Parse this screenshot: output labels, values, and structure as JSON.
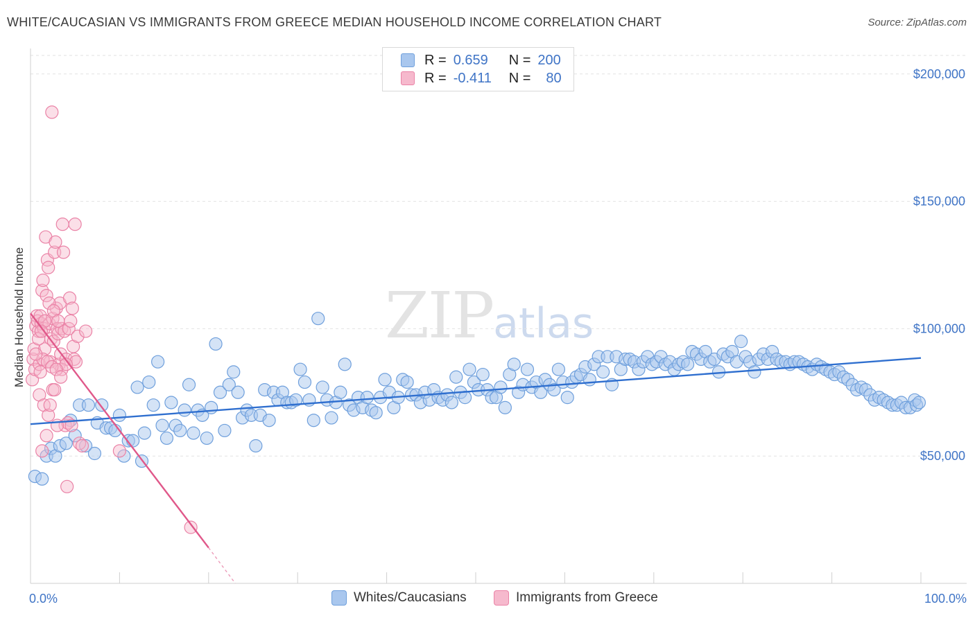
{
  "title": "WHITE/CAUCASIAN VS IMMIGRANTS FROM GREECE MEDIAN HOUSEHOLD INCOME CORRELATION CHART",
  "source": "Source: ZipAtlas.com",
  "watermark": {
    "zip": "ZIP",
    "atlas": "atlas"
  },
  "legend_top": {
    "rows": [
      {
        "r_label": "R =",
        "r_value": "0.659",
        "n_label": "N =",
        "n_value": "200"
      },
      {
        "r_label": "R =",
        "r_value": "-0.411",
        "n_label": "N =",
        "n_value": "80"
      }
    ]
  },
  "legend_bottom": {
    "items": [
      {
        "label": "Whites/Caucasians"
      },
      {
        "label": "Immigrants from Greece"
      }
    ]
  },
  "colors": {
    "blue_fill": "#a9c7ee",
    "blue_stroke": "#6e9fdc",
    "blue_line": "#2f6fcf",
    "pink_fill": "#f6b9cd",
    "pink_stroke": "#ea82a6",
    "pink_line": "#e0588a",
    "grid": "#e2e2e2",
    "tick_text": "#3f74c6"
  },
  "chart_data": {
    "type": "scatter",
    "title": "WHITE/CAUCASIAN VS IMMIGRANTS FROM GREECE MEDIAN HOUSEHOLD INCOME CORRELATION CHART",
    "xlabel": "",
    "ylabel": "Median Household Income",
    "xlim": [
      0,
      100
    ],
    "ylim": [
      0,
      210000
    ],
    "x_tick_labels": [
      "0.0%",
      "100.0%"
    ],
    "y_ticks": [
      50000,
      100000,
      150000,
      200000
    ],
    "y_tick_labels": [
      "$50,000",
      "$100,000",
      "$150,000",
      "$200,000"
    ],
    "grid": "horizontal dashed",
    "legend": "top-center",
    "series": [
      {
        "name": "Whites/Caucasians",
        "r": 0.659,
        "n": 200,
        "trend": {
          "x": [
            0,
            100
          ],
          "y": [
            62500,
            88500
          ]
        },
        "points": [
          [
            0.5,
            42000
          ],
          [
            1.3,
            41000
          ],
          [
            1.8,
            50000
          ],
          [
            2.3,
            53000
          ],
          [
            2.8,
            50000
          ],
          [
            3.3,
            54000
          ],
          [
            4.0,
            55000
          ],
          [
            4.5,
            64000
          ],
          [
            5.0,
            58000
          ],
          [
            5.5,
            70000
          ],
          [
            6.2,
            54000
          ],
          [
            6.5,
            70000
          ],
          [
            7.2,
            51000
          ],
          [
            7.5,
            63000
          ],
          [
            8.0,
            70000
          ],
          [
            8.5,
            61000
          ],
          [
            9.0,
            61000
          ],
          [
            9.5,
            60000
          ],
          [
            10.0,
            66000
          ],
          [
            10.5,
            50000
          ],
          [
            11.0,
            56000
          ],
          [
            11.5,
            56000
          ],
          [
            12.0,
            77000
          ],
          [
            12.5,
            48000
          ],
          [
            12.8,
            59000
          ],
          [
            13.3,
            79000
          ],
          [
            13.8,
            70000
          ],
          [
            14.3,
            87000
          ],
          [
            14.8,
            62000
          ],
          [
            15.3,
            57000
          ],
          [
            15.8,
            71000
          ],
          [
            16.3,
            62000
          ],
          [
            16.8,
            60000
          ],
          [
            17.3,
            68000
          ],
          [
            17.8,
            78000
          ],
          [
            18.3,
            59000
          ],
          [
            18.8,
            68000
          ],
          [
            19.3,
            66000
          ],
          [
            19.8,
            57000
          ],
          [
            20.3,
            69000
          ],
          [
            20.8,
            94000
          ],
          [
            21.3,
            75000
          ],
          [
            21.8,
            60000
          ],
          [
            22.3,
            78000
          ],
          [
            22.8,
            83000
          ],
          [
            23.3,
            75000
          ],
          [
            23.8,
            65000
          ],
          [
            24.3,
            68000
          ],
          [
            24.8,
            66000
          ],
          [
            25.3,
            54000
          ],
          [
            25.8,
            66000
          ],
          [
            26.3,
            76000
          ],
          [
            26.8,
            64000
          ],
          [
            27.3,
            75000
          ],
          [
            27.8,
            72000
          ],
          [
            28.3,
            75000
          ],
          [
            28.8,
            71000
          ],
          [
            29.3,
            71000
          ],
          [
            29.8,
            72000
          ],
          [
            30.3,
            84000
          ],
          [
            30.8,
            79000
          ],
          [
            31.3,
            72000
          ],
          [
            31.8,
            64000
          ],
          [
            32.3,
            104000
          ],
          [
            32.8,
            77000
          ],
          [
            33.3,
            72000
          ],
          [
            33.8,
            65000
          ],
          [
            34.3,
            71000
          ],
          [
            34.8,
            75000
          ],
          [
            35.3,
            86000
          ],
          [
            35.8,
            70000
          ],
          [
            36.3,
            68000
          ],
          [
            36.8,
            73000
          ],
          [
            37.3,
            69000
          ],
          [
            37.8,
            73000
          ],
          [
            38.3,
            68000
          ],
          [
            38.8,
            67000
          ],
          [
            39.3,
            73000
          ],
          [
            39.8,
            80000
          ],
          [
            40.3,
            75000
          ],
          [
            40.8,
            69000
          ],
          [
            41.3,
            73000
          ],
          [
            41.8,
            80000
          ],
          [
            42.3,
            79000
          ],
          [
            42.8,
            74000
          ],
          [
            43.3,
            74000
          ],
          [
            43.8,
            71000
          ],
          [
            44.3,
            75000
          ],
          [
            44.8,
            72000
          ],
          [
            45.3,
            76000
          ],
          [
            45.8,
            73000
          ],
          [
            46.3,
            72000
          ],
          [
            46.8,
            74000
          ],
          [
            47.3,
            71000
          ],
          [
            47.8,
            81000
          ],
          [
            48.3,
            75000
          ],
          [
            48.8,
            73000
          ],
          [
            49.3,
            84000
          ],
          [
            49.8,
            79000
          ],
          [
            50.3,
            76000
          ],
          [
            50.8,
            82000
          ],
          [
            51.3,
            76000
          ],
          [
            51.8,
            73000
          ],
          [
            52.3,
            73000
          ],
          [
            52.8,
            77000
          ],
          [
            53.3,
            69000
          ],
          [
            53.8,
            82000
          ],
          [
            54.3,
            86000
          ],
          [
            54.8,
            75000
          ],
          [
            55.3,
            78000
          ],
          [
            55.8,
            84000
          ],
          [
            56.3,
            77000
          ],
          [
            56.8,
            79000
          ],
          [
            57.3,
            75000
          ],
          [
            57.8,
            80000
          ],
          [
            58.3,
            78000
          ],
          [
            58.8,
            76000
          ],
          [
            59.3,
            84000
          ],
          [
            59.8,
            79000
          ],
          [
            60.3,
            73000
          ],
          [
            60.8,
            79000
          ],
          [
            61.3,
            81000
          ],
          [
            61.8,
            82000
          ],
          [
            62.3,
            85000
          ],
          [
            62.8,
            80000
          ],
          [
            63.3,
            86000
          ],
          [
            63.8,
            89000
          ],
          [
            64.3,
            83000
          ],
          [
            64.8,
            89000
          ],
          [
            65.3,
            78000
          ],
          [
            65.8,
            89000
          ],
          [
            66.3,
            84000
          ],
          [
            66.8,
            88000
          ],
          [
            67.3,
            88000
          ],
          [
            67.8,
            87000
          ],
          [
            68.3,
            84000
          ],
          [
            68.8,
            87000
          ],
          [
            69.3,
            89000
          ],
          [
            69.8,
            86000
          ],
          [
            70.3,
            87000
          ],
          [
            70.8,
            89000
          ],
          [
            71.3,
            86000
          ],
          [
            71.8,
            87000
          ],
          [
            72.3,
            84000
          ],
          [
            72.8,
            86000
          ],
          [
            73.3,
            87000
          ],
          [
            73.8,
            86000
          ],
          [
            74.3,
            91000
          ],
          [
            74.8,
            90000
          ],
          [
            75.3,
            88000
          ],
          [
            75.8,
            91000
          ],
          [
            76.3,
            87000
          ],
          [
            76.8,
            88000
          ],
          [
            77.3,
            83000
          ],
          [
            77.8,
            90000
          ],
          [
            78.3,
            89000
          ],
          [
            78.8,
            91000
          ],
          [
            79.3,
            87000
          ],
          [
            79.8,
            95000
          ],
          [
            80.3,
            89000
          ],
          [
            80.8,
            87000
          ],
          [
            81.3,
            83000
          ],
          [
            81.8,
            88000
          ],
          [
            82.3,
            90000
          ],
          [
            82.8,
            88000
          ],
          [
            83.3,
            91000
          ],
          [
            83.8,
            88000
          ],
          [
            84.3,
            87000
          ],
          [
            84.8,
            87000
          ],
          [
            85.3,
            86000
          ],
          [
            85.8,
            87000
          ],
          [
            86.3,
            87000
          ],
          [
            86.8,
            86000
          ],
          [
            87.3,
            85000
          ],
          [
            87.8,
            84000
          ],
          [
            88.3,
            86000
          ],
          [
            88.8,
            85000
          ],
          [
            89.3,
            84000
          ],
          [
            89.8,
            83000
          ],
          [
            90.3,
            82000
          ],
          [
            90.8,
            83000
          ],
          [
            91.3,
            81000
          ],
          [
            91.8,
            80000
          ],
          [
            92.3,
            78000
          ],
          [
            92.8,
            76000
          ],
          [
            93.3,
            77000
          ],
          [
            93.8,
            76000
          ],
          [
            94.3,
            74000
          ],
          [
            94.8,
            72000
          ],
          [
            95.3,
            73000
          ],
          [
            95.8,
            72000
          ],
          [
            96.3,
            71000
          ],
          [
            96.8,
            70000
          ],
          [
            97.3,
            70000
          ],
          [
            97.8,
            71000
          ],
          [
            98.3,
            69000
          ],
          [
            98.8,
            69000
          ],
          [
            99.3,
            72000
          ],
          [
            99.5,
            70000
          ],
          [
            99.8,
            71000
          ]
        ]
      },
      {
        "name": "Immigrants from Greece",
        "r": -0.411,
        "n": 80,
        "trend": {
          "x": [
            0,
            20
          ],
          "y": [
            106000,
            14000
          ],
          "dashed_to": [
            23,
            0
          ]
        },
        "points": [
          [
            0.2,
            80000
          ],
          [
            0.3,
            88000
          ],
          [
            0.4,
            92000
          ],
          [
            0.5,
            84000
          ],
          [
            0.6,
            101000
          ],
          [
            0.7,
            105000
          ],
          [
            0.8,
            103000
          ],
          [
            0.9,
            99000
          ],
          [
            1.0,
            86000
          ],
          [
            1.1,
            83000
          ],
          [
            1.2,
            102000
          ],
          [
            1.3,
            115000
          ],
          [
            1.4,
            119000
          ],
          [
            1.5,
            100000
          ],
          [
            1.6,
            92000
          ],
          [
            1.7,
            136000
          ],
          [
            1.8,
            113000
          ],
          [
            1.9,
            127000
          ],
          [
            2.0,
            124000
          ],
          [
            2.1,
            102000
          ],
          [
            2.2,
            87000
          ],
          [
            2.3,
            96000
          ],
          [
            2.4,
            185000
          ],
          [
            2.5,
            104000
          ],
          [
            2.6,
            95000
          ],
          [
            2.7,
            130000
          ],
          [
            2.8,
            134000
          ],
          [
            2.9,
            108000
          ],
          [
            3.0,
            100000
          ],
          [
            3.1,
            98000
          ],
          [
            3.2,
            86000
          ],
          [
            3.3,
            110000
          ],
          [
            3.4,
            90000
          ],
          [
            3.5,
            100000
          ],
          [
            3.6,
            141000
          ],
          [
            3.7,
            130000
          ],
          [
            3.8,
            99000
          ],
          [
            3.9,
            62000
          ],
          [
            4.0,
            88000
          ],
          [
            4.1,
            38000
          ],
          [
            4.2,
            63000
          ],
          [
            4.3,
            100000
          ],
          [
            4.4,
            112000
          ],
          [
            4.5,
            103000
          ],
          [
            4.6,
            62000
          ],
          [
            4.7,
            108000
          ],
          [
            4.8,
            93000
          ],
          [
            4.9,
            88000
          ],
          [
            5.0,
            141000
          ],
          [
            5.1,
            87000
          ],
          [
            5.3,
            97000
          ],
          [
            5.5,
            55000
          ],
          [
            5.8,
            54000
          ],
          [
            6.2,
            99000
          ],
          [
            1.0,
            74000
          ],
          [
            1.5,
            70000
          ],
          [
            2.0,
            66000
          ],
          [
            2.5,
            76000
          ],
          [
            3.0,
            62000
          ],
          [
            1.3,
            52000
          ],
          [
            1.8,
            58000
          ],
          [
            2.2,
            70000
          ],
          [
            3.5,
            84000
          ],
          [
            4.0,
            86000
          ],
          [
            1.1,
            105000
          ],
          [
            1.6,
            103000
          ],
          [
            2.1,
            110000
          ],
          [
            2.6,
            107000
          ],
          [
            3.1,
            103000
          ],
          [
            0.9,
            96000
          ],
          [
            1.4,
            88000
          ],
          [
            1.9,
            87000
          ],
          [
            2.4,
            85000
          ],
          [
            2.9,
            84000
          ],
          [
            3.4,
            81000
          ],
          [
            0.6,
            90000
          ],
          [
            1.2,
            99000
          ],
          [
            10.0,
            52000
          ],
          [
            18.0,
            22000
          ],
          [
            2.7,
            76000
          ]
        ]
      }
    ]
  }
}
